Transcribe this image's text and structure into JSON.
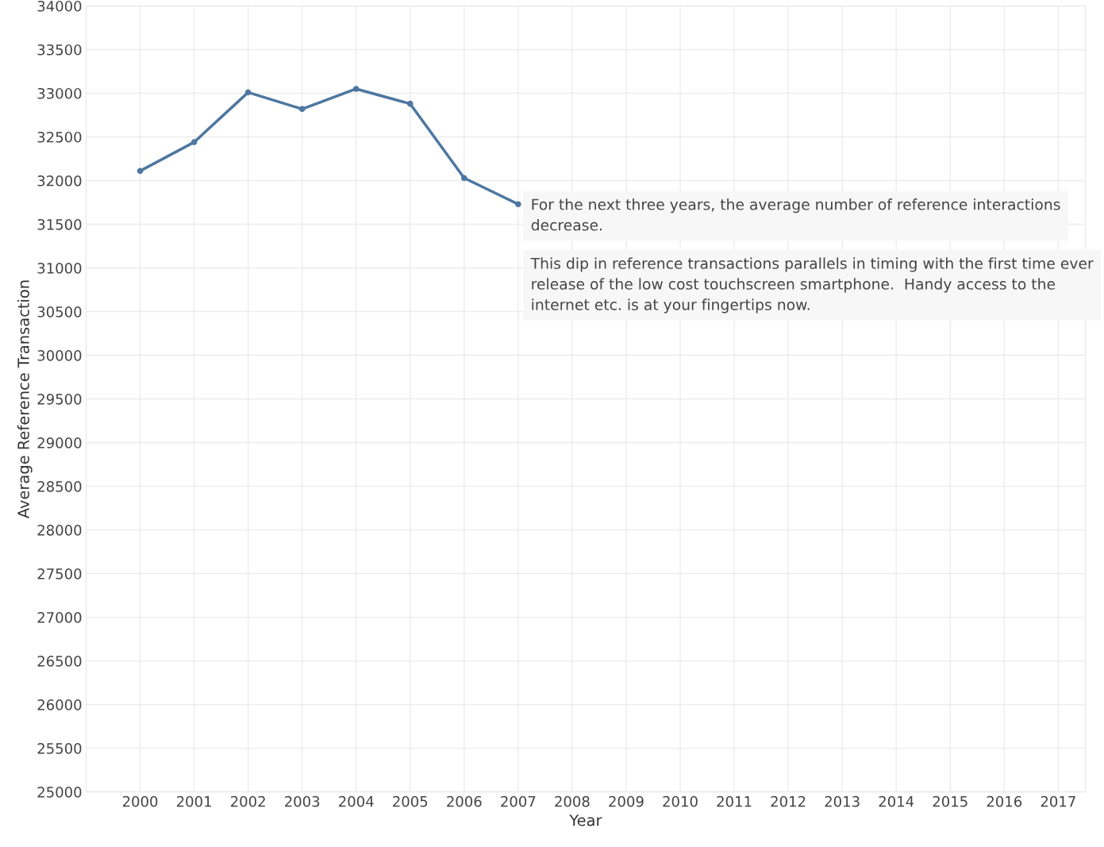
{
  "chart_data": {
    "type": "line",
    "xlabel": "Year",
    "ylabel": "Average Reference Transaction",
    "x": [
      2000,
      2001,
      2002,
      2003,
      2004,
      2005,
      2006,
      2007
    ],
    "series": [
      {
        "color": "#4e77a0",
        "values": [
          32110,
          32440,
          33010,
          32820,
          33050,
          32880,
          32030,
          31730
        ]
      }
    ],
    "xlim": [
      1999,
      2017.5
    ],
    "xticks": [
      2000,
      2001,
      2002,
      2003,
      2004,
      2005,
      2006,
      2007,
      2008,
      2009,
      2010,
      2011,
      2012,
      2013,
      2014,
      2015,
      2016,
      2017
    ],
    "ylim": [
      25000,
      34000
    ],
    "yticks": [
      25000,
      25500,
      26000,
      26500,
      27000,
      27500,
      28000,
      28500,
      29000,
      29500,
      30000,
      30500,
      31000,
      31500,
      32000,
      32500,
      33000,
      33500,
      34000
    ],
    "grid": true,
    "marker": "circle",
    "line_style": "solid",
    "annotations": [
      "For the next three years, the average number of reference interactions decrease.",
      "This dip in reference transactions parallels in timing with the first time ever release of the low cost touchscreen smartphone.  Handy access to the internet etc. is at your fingertips now."
    ]
  }
}
